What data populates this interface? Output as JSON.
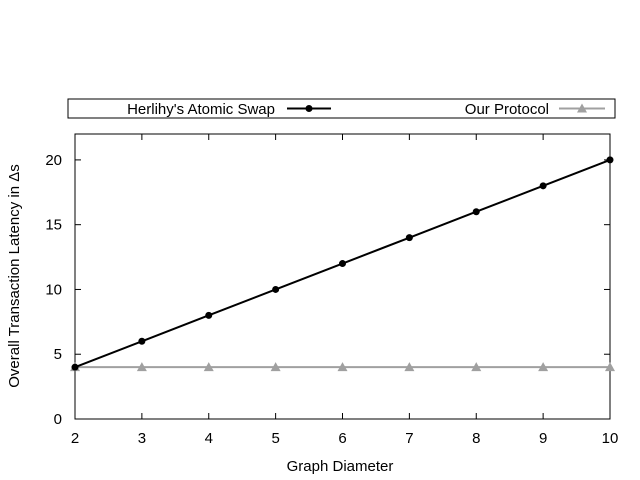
{
  "chart_data": {
    "type": "line",
    "title": "",
    "xlabel": "Graph Diameter",
    "ylabel": "Overall Transaction Latency in Δs",
    "x": [
      2,
      3,
      4,
      5,
      6,
      7,
      8,
      9,
      10
    ],
    "xlim": [
      2,
      10
    ],
    "ylim": [
      0,
      22
    ],
    "yticks": [
      0,
      5,
      10,
      15,
      20
    ],
    "grid": false,
    "legend_position": "top, outside plot",
    "series": [
      {
        "name": "Herlihy's Atomic Swap",
        "values": [
          4,
          6,
          8,
          10,
          12,
          14,
          16,
          18,
          20
        ],
        "color": "#000000",
        "marker": "circle"
      },
      {
        "name": "Our Protocol",
        "values": [
          4,
          4,
          4,
          4,
          4,
          4,
          4,
          4,
          4
        ],
        "color": "#a0a0a0",
        "marker": "triangle"
      }
    ]
  }
}
